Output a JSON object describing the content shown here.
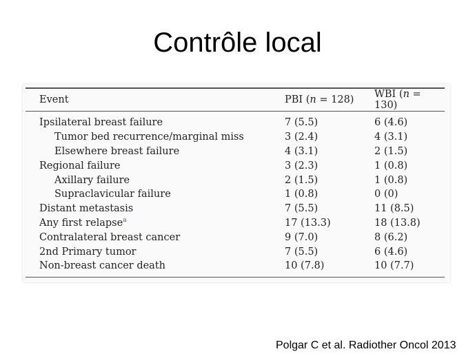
{
  "slide": {
    "title": "Contrôle local",
    "citation": "Polgar C et al. Radiother Oncol 2013"
  },
  "table": {
    "headers": {
      "event": "Event",
      "pbi_prefix": "PBI (",
      "pbi_n": "n",
      "pbi_suffix": " = 128)",
      "wbi_prefix": "WBI (",
      "wbi_n": "n",
      "wbi_suffix": " = 130)"
    },
    "rows": [
      {
        "event": "Ipsilateral breast failure",
        "pbi": "7 (5.5)",
        "wbi": "6 (4.6)"
      },
      {
        "event": "Tumor bed recurrence/marginal miss",
        "pbi": "3 (2.4)",
        "wbi": "4 (3.1)"
      },
      {
        "event": "Elsewhere breast failure",
        "pbi": "4 (3.1)",
        "wbi": "2 (1.5)"
      },
      {
        "event": "Regional failure",
        "pbi": "3 (2.3)",
        "wbi": "1 (0.8)"
      },
      {
        "event": "Axillary failure",
        "pbi": "2 (1.5)",
        "wbi": "1 (0.8)"
      },
      {
        "event": "Supraclavicular failure",
        "pbi": "1 (0.8)",
        "wbi": "0 (0)"
      },
      {
        "event": "Distant metastasis",
        "pbi": "7 (5.5)",
        "wbi": "11 (8.5)"
      },
      {
        "event": "Any first relapse",
        "footnote_marker": "a",
        "pbi": "17 (13.3)",
        "wbi": "18 (13.8)"
      },
      {
        "event": "Contralateral breast cancer",
        "pbi": "9 (7.0)",
        "wbi": "8 (6.2)"
      },
      {
        "event": "2nd Primary tumor",
        "pbi": "7 (5.5)",
        "wbi": "6 (4.6)"
      },
      {
        "event": "Non-breast cancer death",
        "pbi": "10 (7.8)",
        "wbi": "10 (7.7)"
      }
    ]
  }
}
